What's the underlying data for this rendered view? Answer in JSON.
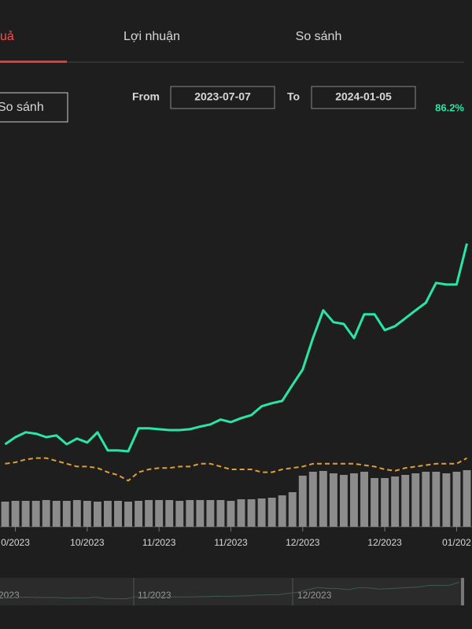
{
  "tabs": [
    "uả",
    "Lợi nhuận",
    "So sánh"
  ],
  "compare_button": "So sánh",
  "range": {
    "from_label": "From",
    "from": "2023-07-07",
    "to_label": "To",
    "to": "2024-01-05",
    "return": "86.2%"
  },
  "chart_data": {
    "type": "line",
    "ylim": [
      -22,
      83
    ],
    "y2lim": [
      0,
      100
    ],
    "xticks": [
      {
        "value": 1,
        "label": "0/2023"
      },
      {
        "value": 8,
        "label": "10/2023"
      },
      {
        "value": 15,
        "label": "11/2023"
      },
      {
        "value": 22,
        "label": "11/2023"
      },
      {
        "value": 29,
        "label": "12/2023"
      },
      {
        "value": 37,
        "label": "12/2023"
      },
      {
        "value": 44,
        "label": "01/202"
      }
    ],
    "series": [
      {
        "color": "#27e6a6",
        "values": [
          6.9,
          9.4,
          11.1,
          10.6,
          9.4,
          10,
          6.9,
          8.9,
          7.5,
          11.1,
          4.7,
          4.7,
          4.4,
          12.5,
          12.5,
          12.2,
          11.9,
          11.9,
          12.2,
          13.1,
          13.9,
          15.6,
          14.7,
          16.1,
          17.2,
          20.3,
          21.4,
          22.2,
          27.8,
          33.3,
          44.4,
          54.2,
          50,
          49.4,
          44.4,
          52.8,
          52.8,
          47.2,
          48.6,
          51.4,
          54.2,
          56.9,
          63.9,
          63.3,
          63.3,
          77.8
        ]
      },
      {
        "color": "#e0a030",
        "dashed": true,
        "values": [
          0,
          0.5,
          1.5,
          2,
          2,
          1,
          0,
          -1,
          -1,
          -1.5,
          -3,
          -4,
          -6,
          -3,
          -2,
          -1.5,
          -1.5,
          -1,
          -1,
          0,
          0,
          -1,
          -2,
          -2,
          -2,
          -3,
          -3,
          -2,
          -1.5,
          -1,
          0,
          0,
          0,
          0,
          0,
          -0.5,
          -1,
          -2,
          -2.5,
          -1.5,
          -1,
          -0.5,
          0,
          0,
          0,
          2
        ]
      },
      {
        "color": "#8c8c8c",
        "type": "bar",
        "axis": "y2",
        "values": [
          32,
          33,
          33,
          33,
          34,
          33,
          33,
          34,
          33,
          32,
          33,
          33,
          32,
          33,
          34,
          34,
          34,
          33,
          34,
          34,
          34,
          34,
          33,
          35,
          35,
          36,
          37,
          40,
          44,
          65,
          70,
          71,
          68,
          66,
          68,
          70,
          62,
          62,
          64,
          66,
          68,
          70,
          70,
          68,
          70,
          72
        ]
      }
    ]
  },
  "navigator": {
    "labels": [
      "2023",
      "11/2023",
      "12/2023"
    ]
  }
}
